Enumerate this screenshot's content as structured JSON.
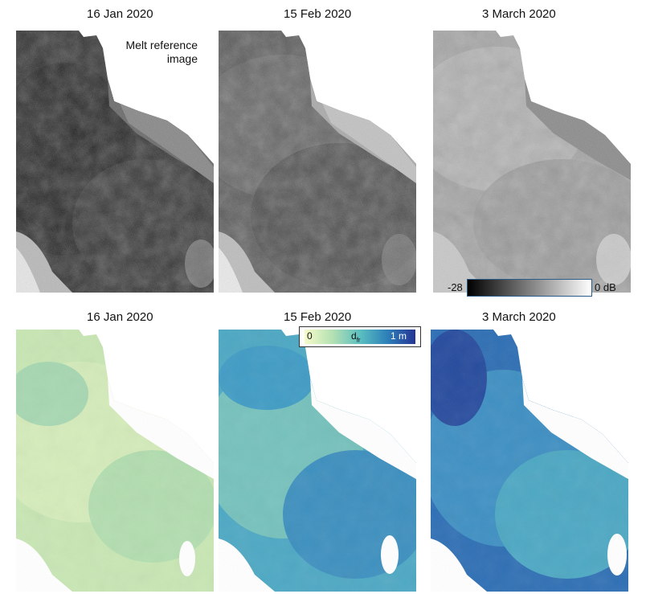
{
  "top_row": {
    "panels": [
      {
        "date": "16 Jan 2020",
        "note_line1": "Melt reference",
        "note_line2": "image"
      },
      {
        "date": "15 Feb 2020"
      },
      {
        "date": "3 March 2020"
      }
    ],
    "colorbar": {
      "min_label": "-28",
      "max_label": "0 dB",
      "colors": [
        "#000000",
        "#ffffff"
      ]
    }
  },
  "bottom_row": {
    "panels": [
      {
        "date": "16 Jan 2020"
      },
      {
        "date": "15 Feb 2020"
      },
      {
        "date": "3 March 2020"
      }
    ],
    "colorbar": {
      "min_label": "0",
      "mid_label": "d",
      "mid_subscript": "fr",
      "max_label": "1 m",
      "colors": [
        "#f7fbc9",
        "#b4e1b3",
        "#5bbfc0",
        "#2c7fb8",
        "#253494"
      ]
    }
  }
}
